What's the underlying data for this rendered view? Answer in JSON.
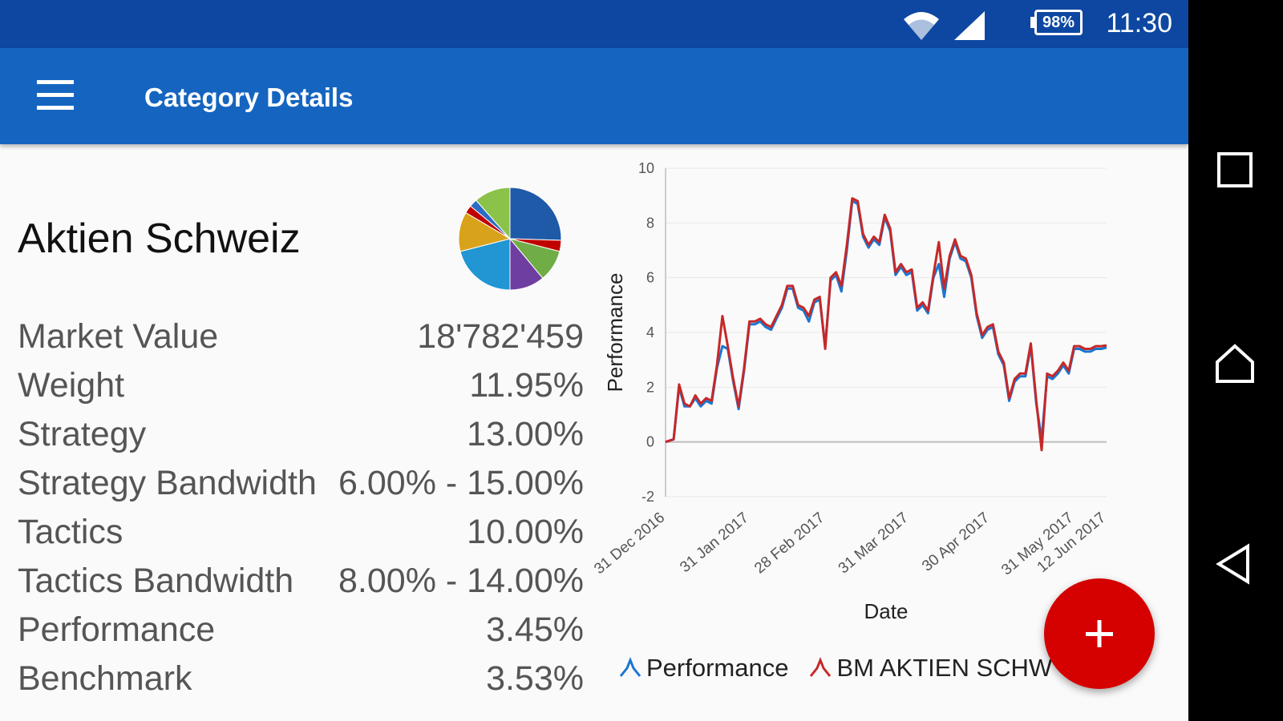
{
  "status_bar": {
    "time": "11:30",
    "battery": "98%",
    "icons": [
      "wifi-icon",
      "signal-icon",
      "battery-icon"
    ]
  },
  "app_bar": {
    "title": "Category Details",
    "menu_icon": "menu-icon"
  },
  "category": {
    "name": "Aktien Schweiz"
  },
  "details": [
    {
      "label": "Market Value",
      "value": "18'782'459"
    },
    {
      "label": "Weight",
      "value": "11.95%"
    },
    {
      "label": "Strategy",
      "value": "13.00%"
    },
    {
      "label": "Strategy Bandwidth",
      "value": "6.00% - 15.00%"
    },
    {
      "label": "Tactics",
      "value": "10.00%"
    },
    {
      "label": "Tactics Bandwidth",
      "value": "8.00% - 14.00%"
    },
    {
      "label": "Performance",
      "value": "3.45%"
    },
    {
      "label": "Benchmark",
      "value": "3.53%"
    }
  ],
  "pie_chart": {
    "type": "pie",
    "slices": [
      {
        "value": 25.5,
        "color": "#1e5aa8"
      },
      {
        "value": 3.5,
        "color": "#c00000"
      },
      {
        "value": 10,
        "color": "#70ad47"
      },
      {
        "value": 11,
        "color": "#6f3ea1"
      },
      {
        "value": 21,
        "color": "#2196d3"
      },
      {
        "value": 12.5,
        "color": "#d9a21b"
      },
      {
        "value": 2.5,
        "color": "#c00000"
      },
      {
        "value": 2.5,
        "color": "#2b6cc4"
      },
      {
        "value": 11.5,
        "color": "#8bc34a"
      }
    ]
  },
  "chart_data": {
    "type": "line",
    "xlabel": "Date",
    "ylabel": "Performance",
    "ylim": [
      -2,
      10
    ],
    "yticks": [
      -2,
      0,
      2,
      4,
      6,
      8,
      10
    ],
    "xlim": [
      "2016-12-31",
      "2017-06-12"
    ],
    "xticks": [
      "31 Dec 2016",
      "31 Jan 2017",
      "28 Feb 2017",
      "31 Mar 2017",
      "30 Apr 2017",
      "31 May 2017",
      "12 Jun 2017"
    ],
    "grid": true,
    "legend_position": "bottom",
    "x": [
      "2016-12-31",
      "2017-01-03",
      "2017-01-05",
      "2017-01-07",
      "2017-01-09",
      "2017-01-11",
      "2017-01-13",
      "2017-01-15",
      "2017-01-17",
      "2017-01-19",
      "2017-01-21",
      "2017-01-23",
      "2017-01-25",
      "2017-01-27",
      "2017-01-29",
      "2017-01-31",
      "2017-02-02",
      "2017-02-04",
      "2017-02-06",
      "2017-02-08",
      "2017-02-10",
      "2017-02-12",
      "2017-02-14",
      "2017-02-16",
      "2017-02-18",
      "2017-02-20",
      "2017-02-22",
      "2017-02-24",
      "2017-02-26",
      "2017-02-28",
      "2017-03-02",
      "2017-03-04",
      "2017-03-06",
      "2017-03-08",
      "2017-03-10",
      "2017-03-12",
      "2017-03-14",
      "2017-03-16",
      "2017-03-18",
      "2017-03-20",
      "2017-03-22",
      "2017-03-24",
      "2017-03-26",
      "2017-03-28",
      "2017-03-30",
      "2017-04-01",
      "2017-04-03",
      "2017-04-05",
      "2017-04-07",
      "2017-04-09",
      "2017-04-11",
      "2017-04-13",
      "2017-04-15",
      "2017-04-17",
      "2017-04-19",
      "2017-04-21",
      "2017-04-23",
      "2017-04-25",
      "2017-04-27",
      "2017-04-29",
      "2017-05-01",
      "2017-05-03",
      "2017-05-05",
      "2017-05-07",
      "2017-05-09",
      "2017-05-11",
      "2017-05-13",
      "2017-05-15",
      "2017-05-17",
      "2017-05-19",
      "2017-05-21",
      "2017-05-23",
      "2017-05-25",
      "2017-05-27",
      "2017-05-29",
      "2017-05-31",
      "2017-06-02",
      "2017-06-04",
      "2017-06-06",
      "2017-06-08",
      "2017-06-10",
      "2017-06-12"
    ],
    "series": [
      {
        "name": "Performance",
        "color": "#1976d2",
        "values": [
          0,
          0.1,
          2.0,
          1.3,
          1.3,
          1.6,
          1.3,
          1.5,
          1.4,
          2.7,
          3.5,
          3.4,
          2.2,
          1.2,
          2.6,
          4.3,
          4.3,
          4.4,
          4.2,
          4.1,
          4.5,
          4.9,
          5.6,
          5.6,
          4.9,
          4.8,
          4.4,
          5.1,
          5.2,
          3.5,
          5.9,
          6.1,
          5.5,
          7.0,
          8.8,
          8.7,
          7.5,
          7.1,
          7.4,
          7.2,
          8.2,
          7.7,
          6.1,
          6.4,
          6.1,
          6.2,
          4.8,
          5.0,
          4.7,
          6.0,
          6.5,
          5.3,
          6.7,
          7.3,
          6.7,
          6.6,
          6.0,
          4.6,
          3.8,
          4.1,
          4.2,
          3.2,
          2.8,
          1.5,
          2.2,
          2.4,
          2.4,
          3.5,
          1.4,
          0.1,
          2.4,
          2.3,
          2.5,
          2.8,
          2.5,
          3.4,
          3.4,
          3.3,
          3.3,
          3.4,
          3.4,
          3.45
        ]
      },
      {
        "name": "BM AKTIEN SCHW",
        "color": "#c62828",
        "values": [
          0,
          0.1,
          2.1,
          1.4,
          1.3,
          1.7,
          1.4,
          1.6,
          1.5,
          2.8,
          4.6,
          3.5,
          2.3,
          1.3,
          2.7,
          4.4,
          4.4,
          4.5,
          4.3,
          4.2,
          4.6,
          5.0,
          5.7,
          5.7,
          5.0,
          4.9,
          4.6,
          5.2,
          5.3,
          3.4,
          6.0,
          6.2,
          5.7,
          7.2,
          8.9,
          8.8,
          7.6,
          7.2,
          7.5,
          7.3,
          8.3,
          7.8,
          6.2,
          6.5,
          6.2,
          6.3,
          4.9,
          5.1,
          4.8,
          6.1,
          7.3,
          5.6,
          6.8,
          7.4,
          6.8,
          6.7,
          6.1,
          4.7,
          3.9,
          4.2,
          4.3,
          3.3,
          2.9,
          1.6,
          2.3,
          2.5,
          2.5,
          3.6,
          1.5,
          -0.3,
          2.5,
          2.4,
          2.6,
          2.9,
          2.6,
          3.5,
          3.5,
          3.4,
          3.4,
          3.5,
          3.5,
          3.53
        ]
      }
    ],
    "legend": [
      "Performance",
      "BM AKTIEN SCHW"
    ]
  },
  "fab": {
    "icon": "plus-icon"
  },
  "nav_bar": {
    "icons": [
      "recent-apps-icon",
      "home-icon",
      "back-icon"
    ]
  }
}
